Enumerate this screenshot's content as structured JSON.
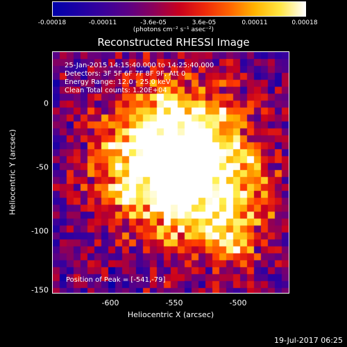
{
  "colorbar": {
    "ticks": [
      "-0.00018",
      "-0.00011",
      "-3.6e-05",
      "3.6e-05",
      "0.00011",
      "0.00018"
    ],
    "units": "(photons cm⁻² s⁻¹ asec⁻²)"
  },
  "chart_data": {
    "type": "heatmap",
    "title": "Reconstructed RHESSI Image",
    "xlabel": "Heliocentric X (arcsec)",
    "ylabel": "Heliocentric Y (arcsec)",
    "x_ticks": [
      "-600",
      "-550",
      "-500"
    ],
    "y_ticks": [
      "0",
      "-50",
      "-100",
      "-150"
    ],
    "xlim": [
      -648,
      -462
    ],
    "ylim": [
      -153,
      40
    ],
    "colormap": "blue-purple-red-yellow-white",
    "clim": [
      -0.00018,
      0.00018
    ],
    "peak_position": [
      -541,
      -79
    ],
    "annotations": [
      "25-Jan-2015 14:15:40.000 to 14:25:40.000",
      "Detectors: 3F 5F 6F 7F 8F 9F, Att 0",
      "Energy Range: 12.0 - 25.0 keV",
      "Clean     Total counts: 1.20E+04",
      "Position of Peak = [-541,-79]"
    ]
  },
  "footer": "19-Jul-2017 06:25"
}
